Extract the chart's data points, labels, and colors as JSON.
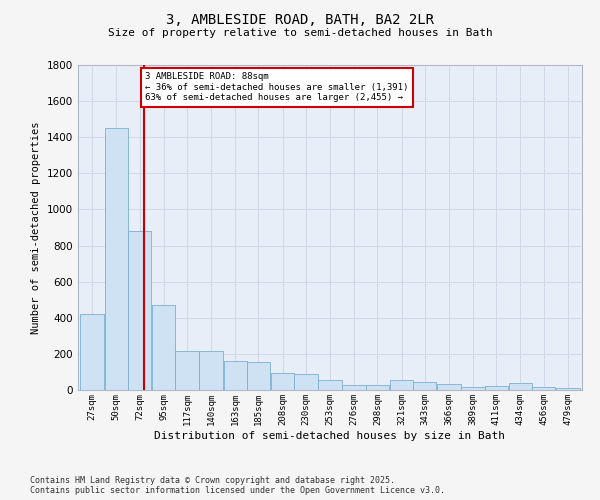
{
  "title": "3, AMBLESIDE ROAD, BATH, BA2 2LR",
  "subtitle": "Size of property relative to semi-detached houses in Bath",
  "xlabel": "Distribution of semi-detached houses by size in Bath",
  "ylabel": "Number of semi-detached properties",
  "annotation_line1": "3 AMBLESIDE ROAD: 88sqm",
  "annotation_line2": "← 36% of semi-detached houses are smaller (1,391)",
  "annotation_line3": "63% of semi-detached houses are larger (2,455) →",
  "bin_edges": [
    27,
    50,
    72,
    95,
    117,
    140,
    163,
    185,
    208,
    230,
    253,
    276,
    298,
    321,
    343,
    366,
    389,
    411,
    434,
    456,
    479
  ],
  "bin_labels": [
    "27sqm",
    "50sqm",
    "72sqm",
    "95sqm",
    "117sqm",
    "140sqm",
    "163sqm",
    "185sqm",
    "208sqm",
    "230sqm",
    "253sqm",
    "276sqm",
    "298sqm",
    "321sqm",
    "343sqm",
    "366sqm",
    "389sqm",
    "411sqm",
    "434sqm",
    "456sqm",
    "479sqm"
  ],
  "bar_heights": [
    420,
    1450,
    880,
    470,
    215,
    215,
    160,
    155,
    95,
    90,
    55,
    30,
    25,
    55,
    45,
    35,
    15,
    20,
    40,
    15,
    10
  ],
  "bar_color": "#cfe2f3",
  "bar_edge_color": "#7bafd4",
  "red_line_x": 88,
  "annotation_box_color": "#ffffff",
  "annotation_box_edge": "#cc0000",
  "ylim": [
    0,
    1800
  ],
  "yticks": [
    0,
    200,
    400,
    600,
    800,
    1000,
    1200,
    1400,
    1600,
    1800
  ],
  "grid_color": "#d0d8e8",
  "ax_background": "#e8eef8",
  "fig_background": "#f5f5f5",
  "footer_line1": "Contains HM Land Registry data © Crown copyright and database right 2025.",
  "footer_line2": "Contains public sector information licensed under the Open Government Licence v3.0."
}
